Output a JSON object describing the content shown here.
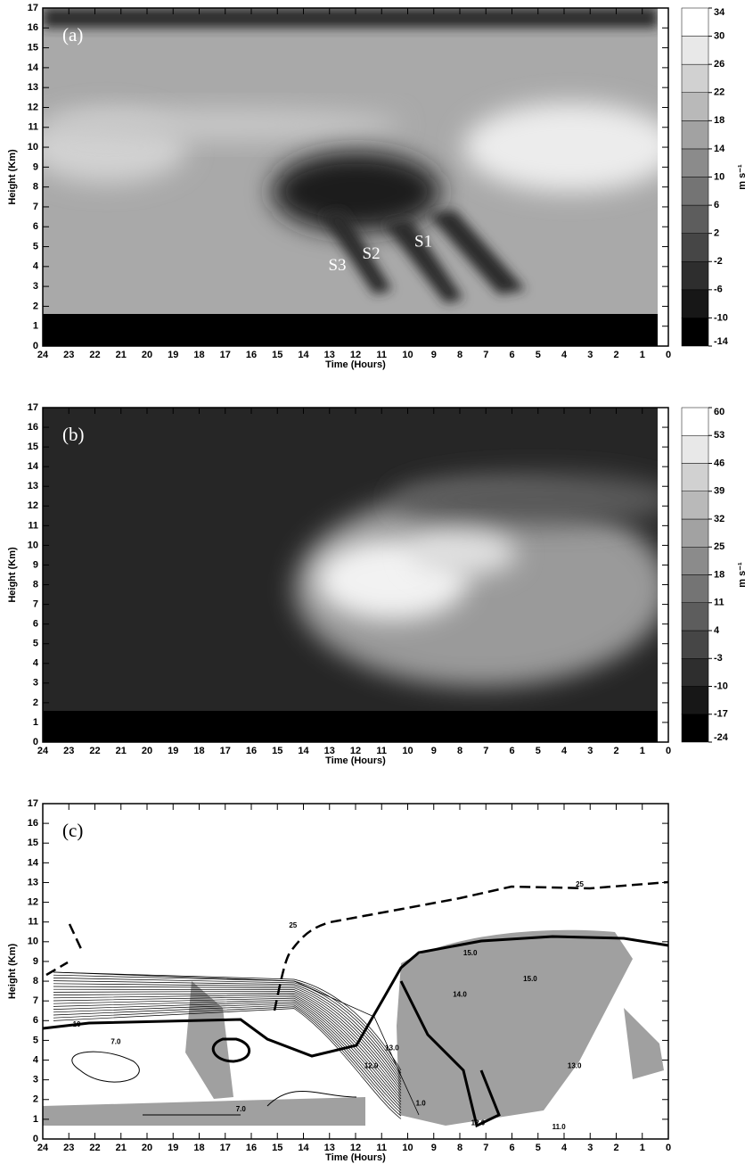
{
  "chart_data": [
    {
      "type": "heatmap",
      "panel_label": "(a)",
      "xlabel": "Time (Hours)",
      "ylabel": "Height (Km)",
      "xlim": [
        24,
        0
      ],
      "xticks": [
        24,
        23,
        22,
        21,
        20,
        19,
        18,
        17,
        16,
        15,
        14,
        13,
        12,
        11,
        10,
        9,
        8,
        7,
        6,
        5,
        4,
        3,
        2,
        1,
        0
      ],
      "ylim": [
        0,
        17
      ],
      "yticks": [
        0,
        1,
        2,
        3,
        4,
        5,
        6,
        7,
        8,
        9,
        10,
        11,
        12,
        13,
        14,
        15,
        16,
        17
      ],
      "colorbar_ticks": [
        -14,
        -10,
        -6,
        -2,
        2,
        6,
        10,
        14,
        18,
        22,
        26,
        30,
        34
      ],
      "colorbar_label": "m s⁻¹",
      "annotations": [
        {
          "text": "S3",
          "x": 12.7,
          "y": 4
        },
        {
          "text": "S2",
          "x": 11.4,
          "y": 4.6
        },
        {
          "text": "S1",
          "x": 9.4,
          "y": 5.2
        }
      ]
    },
    {
      "type": "heatmap",
      "panel_label": "(b)",
      "xlabel": "Time (Hours)",
      "ylabel": "Height (Km)",
      "xlim": [
        24,
        0
      ],
      "xticks": [
        24,
        23,
        22,
        21,
        20,
        19,
        18,
        17,
        16,
        15,
        14,
        13,
        12,
        11,
        10,
        9,
        8,
        7,
        6,
        5,
        4,
        3,
        2,
        1,
        0
      ],
      "ylim": [
        0,
        17
      ],
      "yticks": [
        0,
        1,
        2,
        3,
        4,
        5,
        6,
        7,
        8,
        9,
        10,
        11,
        12,
        13,
        14,
        15,
        16,
        17
      ],
      "colorbar_ticks": [
        -24,
        -17,
        -10,
        -3,
        4,
        11,
        18,
        25,
        32,
        39,
        46,
        53,
        60
      ],
      "colorbar_label": "m s⁻¹"
    },
    {
      "type": "contour",
      "panel_label": "(c)",
      "xlabel": "Time (Hours)",
      "ylabel": "Height (Km)",
      "xlim": [
        24,
        0
      ],
      "xticks": [
        24,
        23,
        22,
        21,
        20,
        19,
        18,
        17,
        16,
        15,
        14,
        13,
        12,
        11,
        10,
        9,
        8,
        7,
        6,
        5,
        4,
        3,
        2,
        1,
        0
      ],
      "ylim": [
        0,
        17
      ],
      "yticks": [
        0,
        1,
        2,
        3,
        4,
        5,
        6,
        7,
        8,
        9,
        10,
        11,
        12,
        13,
        14,
        15,
        16,
        17
      ],
      "contour_labels": [
        {
          "text": "25",
          "x": 3.4,
          "y": 12.9
        },
        {
          "text": "25",
          "x": 14.4,
          "y": 10.8
        },
        {
          "text": "15.0",
          "x": 7.6,
          "y": 9.4
        },
        {
          "text": "15.0",
          "x": 5.3,
          "y": 8.1
        },
        {
          "text": "14.0",
          "x": 8,
          "y": 7.3
        },
        {
          "text": "13.0",
          "x": 3.6,
          "y": 3.7
        },
        {
          "text": "12.0",
          "x": 7.3,
          "y": 0.8
        },
        {
          "text": "11.0",
          "x": 4.2,
          "y": 0.6
        },
        {
          "text": "7.0",
          "x": 21.2,
          "y": 4.9
        },
        {
          "text": "7.0",
          "x": 16.4,
          "y": 1.5
        },
        {
          "text": "10",
          "x": 22.7,
          "y": 5.8
        },
        {
          "text": "1.0",
          "x": 9.5,
          "y": 1.8
        },
        {
          "text": "13.0",
          "x": 10.6,
          "y": 4.6
        },
        {
          "text": "12.0",
          "x": 11.4,
          "y": 3.7
        }
      ]
    }
  ]
}
